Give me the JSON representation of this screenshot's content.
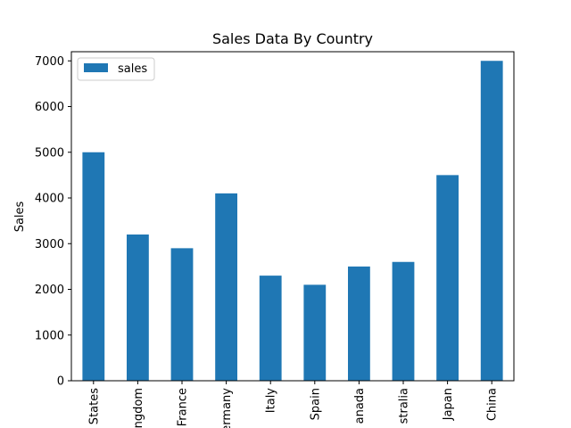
{
  "chart_data": {
    "type": "bar",
    "title": "Sales Data By Country",
    "xlabel": "",
    "ylabel": "Sales",
    "ylim": [
      0,
      7200
    ],
    "yticks": [
      0,
      1000,
      2000,
      3000,
      4000,
      5000,
      6000,
      7000
    ],
    "categories": [
      "States",
      "ngdom",
      "France",
      "ermany",
      "Italy",
      "Spain",
      "anada",
      "stralia",
      "Japan",
      "China"
    ],
    "series": [
      {
        "name": "sales",
        "color": "#1f77b4",
        "values": [
          5000,
          3200,
          2900,
          4100,
          2300,
          2100,
          2500,
          2600,
          4500,
          7000
        ]
      }
    ],
    "legend": {
      "position": "top-left"
    },
    "grid": false
  }
}
